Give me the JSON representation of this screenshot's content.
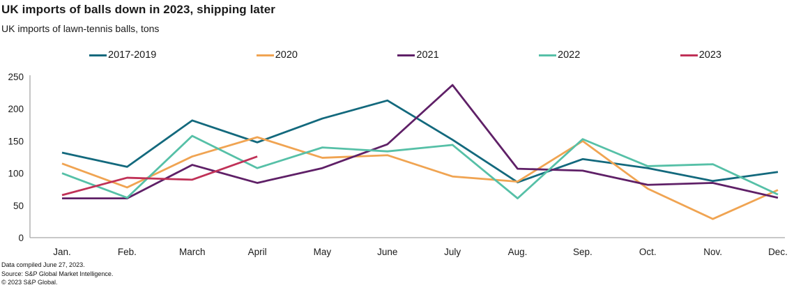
{
  "header": {
    "title": "UK imports of balls down in 2023, shipping later",
    "subtitle": "UK imports of lawn-tennis balls, tons"
  },
  "chart_data": {
    "type": "line",
    "title": "UK imports of balls down in 2023, shipping later",
    "subtitle": "UK imports of lawn-tennis balls, tons",
    "xlabel": "",
    "ylabel": "tons",
    "x": [
      "Jan.",
      "Feb.",
      "March",
      "April",
      "May",
      "June",
      "July",
      "Aug.",
      "Sep.",
      "Oct.",
      "Nov.",
      "Dec."
    ],
    "ylim": [
      0,
      250
    ],
    "yticks": [
      0,
      50,
      100,
      150,
      200,
      250
    ],
    "grid": false,
    "legend_position": "top",
    "series": [
      {
        "name": "2017-2019",
        "color": "#13697d",
        "values": [
          132,
          110,
          182,
          148,
          185,
          213,
          152,
          86,
          122,
          108,
          88,
          102
        ]
      },
      {
        "name": "2020",
        "color": "#f0a452",
        "values": [
          115,
          78,
          126,
          156,
          124,
          128,
          95,
          87,
          150,
          76,
          29,
          74
        ]
      },
      {
        "name": "2021",
        "color": "#5f2067",
        "values": [
          61,
          61,
          113,
          85,
          108,
          145,
          237,
          107,
          104,
          82,
          85,
          62
        ]
      },
      {
        "name": "2022",
        "color": "#56c0a7",
        "values": [
          100,
          62,
          158,
          108,
          140,
          134,
          144,
          61,
          153,
          111,
          114,
          67
        ]
      },
      {
        "name": "2023",
        "color": "#c03157",
        "values": [
          66,
          93,
          90,
          126
        ]
      }
    ]
  },
  "footer": {
    "lines": [
      "Data compiled June 27, 2023.",
      "Source: S&P Global Market Intelligence.",
      "© 2023 S&P Global."
    ]
  }
}
